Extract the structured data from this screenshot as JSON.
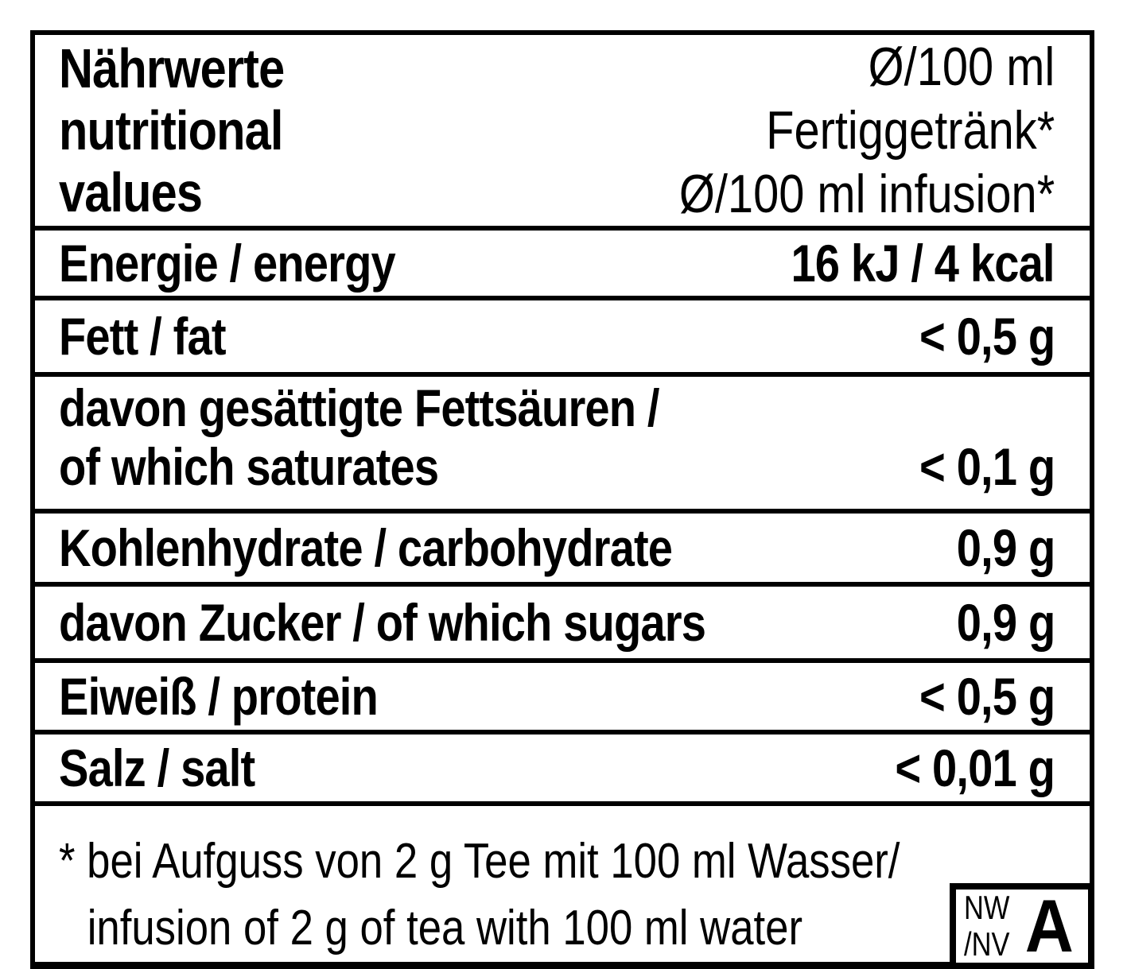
{
  "colors": {
    "ink": "#000000",
    "background": "#ffffff"
  },
  "table": {
    "header": {
      "title_de": "Nährwerte",
      "title_en": "nutritional values",
      "unit_line1": "Ø/100 ml Fertiggetränk*",
      "unit_line2": "Ø/100 ml infusion*"
    },
    "rows": [
      {
        "label": "Energie / energy",
        "value": "16 kJ / 4 kcal"
      },
      {
        "label": "Fett / fat",
        "value": "< 0,5 g"
      },
      {
        "label": "davon gesättigte Fettsäuren /",
        "label2": "of which saturates",
        "value": "< 0,1 g"
      },
      {
        "label": "Kohlenhydrate / carbohydrate",
        "value": "0,9 g"
      },
      {
        "label": "davon Zucker / of which sugars",
        "value": "0,9 g"
      },
      {
        "label": "Eiweiß / protein",
        "value": "< 0,5 g"
      },
      {
        "label": "Salz / salt",
        "value": "< 0,01 g"
      }
    ],
    "footnote": {
      "line1": "* bei Aufguss von 2 g Tee mit 100 ml Wasser/",
      "line2": "infusion of 2 g of tea with 100 ml water"
    },
    "corner_box": {
      "abbrev_line1": "NW",
      "abbrev_line2": "/NV",
      "letter": "A"
    }
  }
}
